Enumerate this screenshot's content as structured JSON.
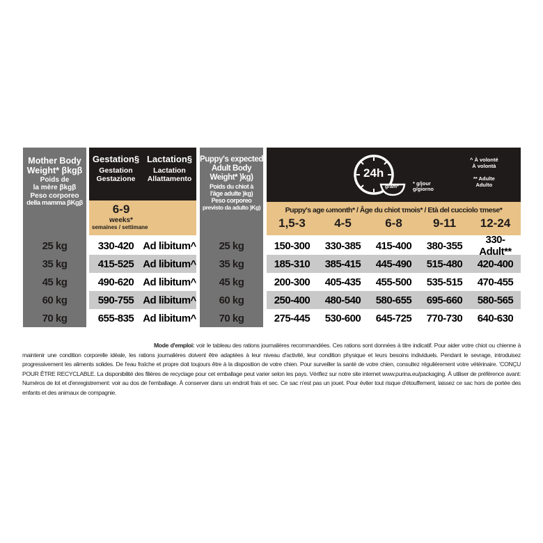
{
  "mother_column": {
    "header": [
      "Mother Body",
      "Weight* βkgβ",
      "Poids de",
      "la mère βkgβ",
      "Peso corporeo",
      "della mamma βKgβ"
    ],
    "weights": [
      "25 kg",
      "35 kg",
      "45 kg",
      "60 kg",
      "70 kg"
    ]
  },
  "mother_header": {
    "gestation": [
      "Gestation§",
      "Gestation",
      "Gestazione"
    ],
    "lactation": [
      "Lactation§",
      "Lactation",
      "Allattamento"
    ],
    "weeks_value": "6-9",
    "weeks_label": "weeks*",
    "weeks_sub": "semaines / settimane"
  },
  "mother_rows": [
    [
      "330-420",
      "Ad libitum^"
    ],
    [
      "415-525",
      "Ad libitum^"
    ],
    [
      "490-620",
      "Ad libitum^"
    ],
    [
      "590-755",
      "Ad libitum^"
    ],
    [
      "655-835",
      "Ad libitum^"
    ]
  ],
  "puppy_column": {
    "header": [
      "Puppy's expected",
      "Adult Body",
      "Weight* )kg)",
      "Poids du chiot à",
      "l'âge adulte )kg)",
      "Peso corporeo",
      "previsto da adulto )Kg)"
    ],
    "weights": [
      "25 kg",
      "35 kg",
      "45 kg",
      "60 kg",
      "70 kg"
    ]
  },
  "puppy_header": {
    "clock_label": "24h",
    "bowl_label": "gram*",
    "unit_note": [
      "* g/jour",
      "g/giorno"
    ],
    "legend": [
      "^ À volonté",
      "À volontà",
      "** Adulte",
      "Adulto"
    ],
    "age_label": "Puppy's age ωmonth* / Âge du chiot τmois* / Età del cucciolo τmese*",
    "ages": [
      "1,5-3",
      "4-5",
      "6-8",
      "9-11",
      "12-24"
    ]
  },
  "puppy_rows": [
    [
      "150-300",
      "330-385",
      "415-400",
      "380-355",
      "330-Adult**"
    ],
    [
      "185-310",
      "385-415",
      "445-490",
      "515-480",
      "420-400"
    ],
    [
      "200-300",
      "405-435",
      "455-500",
      "535-515",
      "470-455"
    ],
    [
      "250-400",
      "480-540",
      "580-655",
      "695-660",
      "580-565"
    ],
    [
      "275-445",
      "530-600",
      "645-725",
      "770-730",
      "640-630"
    ]
  ],
  "notes": {
    "lead": "Mode d'emploi:",
    "text": " voir le tableau des rations journalières recommandées. Ces rations sont données à titre indicatif. Pour aider votre chiot ou chienne à maintenir une condition corporelle idéale, les rations journalières doivent être adaptées à leur niveau d'activité, leur condition physique et leurs besoins individuels. Pendant le sevrage, introduisez progressivement les aliments solides. De l'eau fraîche et propre doit toujours être à la disposition de votre chien. Pour surveiller la santé de votre chien, consultez régulièrement votre vétérinaire. 'CONÇU POUR ÊTRE RECYCLABLE. La disponibilité des filières de recyclage pour cet emballage peut varier selon les pays. Vérifiez sur notre site internet www.purina.eu/packaging. À utiliser de préférence avant: Numéros de lot et d'enregistrement: voir au dos de l'emballage. À conserver dans un endroit frais et sec. Ce sac n'est pas un jouet. Pour éviter tout risque d'étouffement, laissez ce sac hors de portée des enfants et des animaux de compagnie."
  },
  "colors": {
    "gray": "#737373",
    "black": "#1f1b1a",
    "tan": "#e8c287",
    "row_alt": "#c9c9c9"
  }
}
